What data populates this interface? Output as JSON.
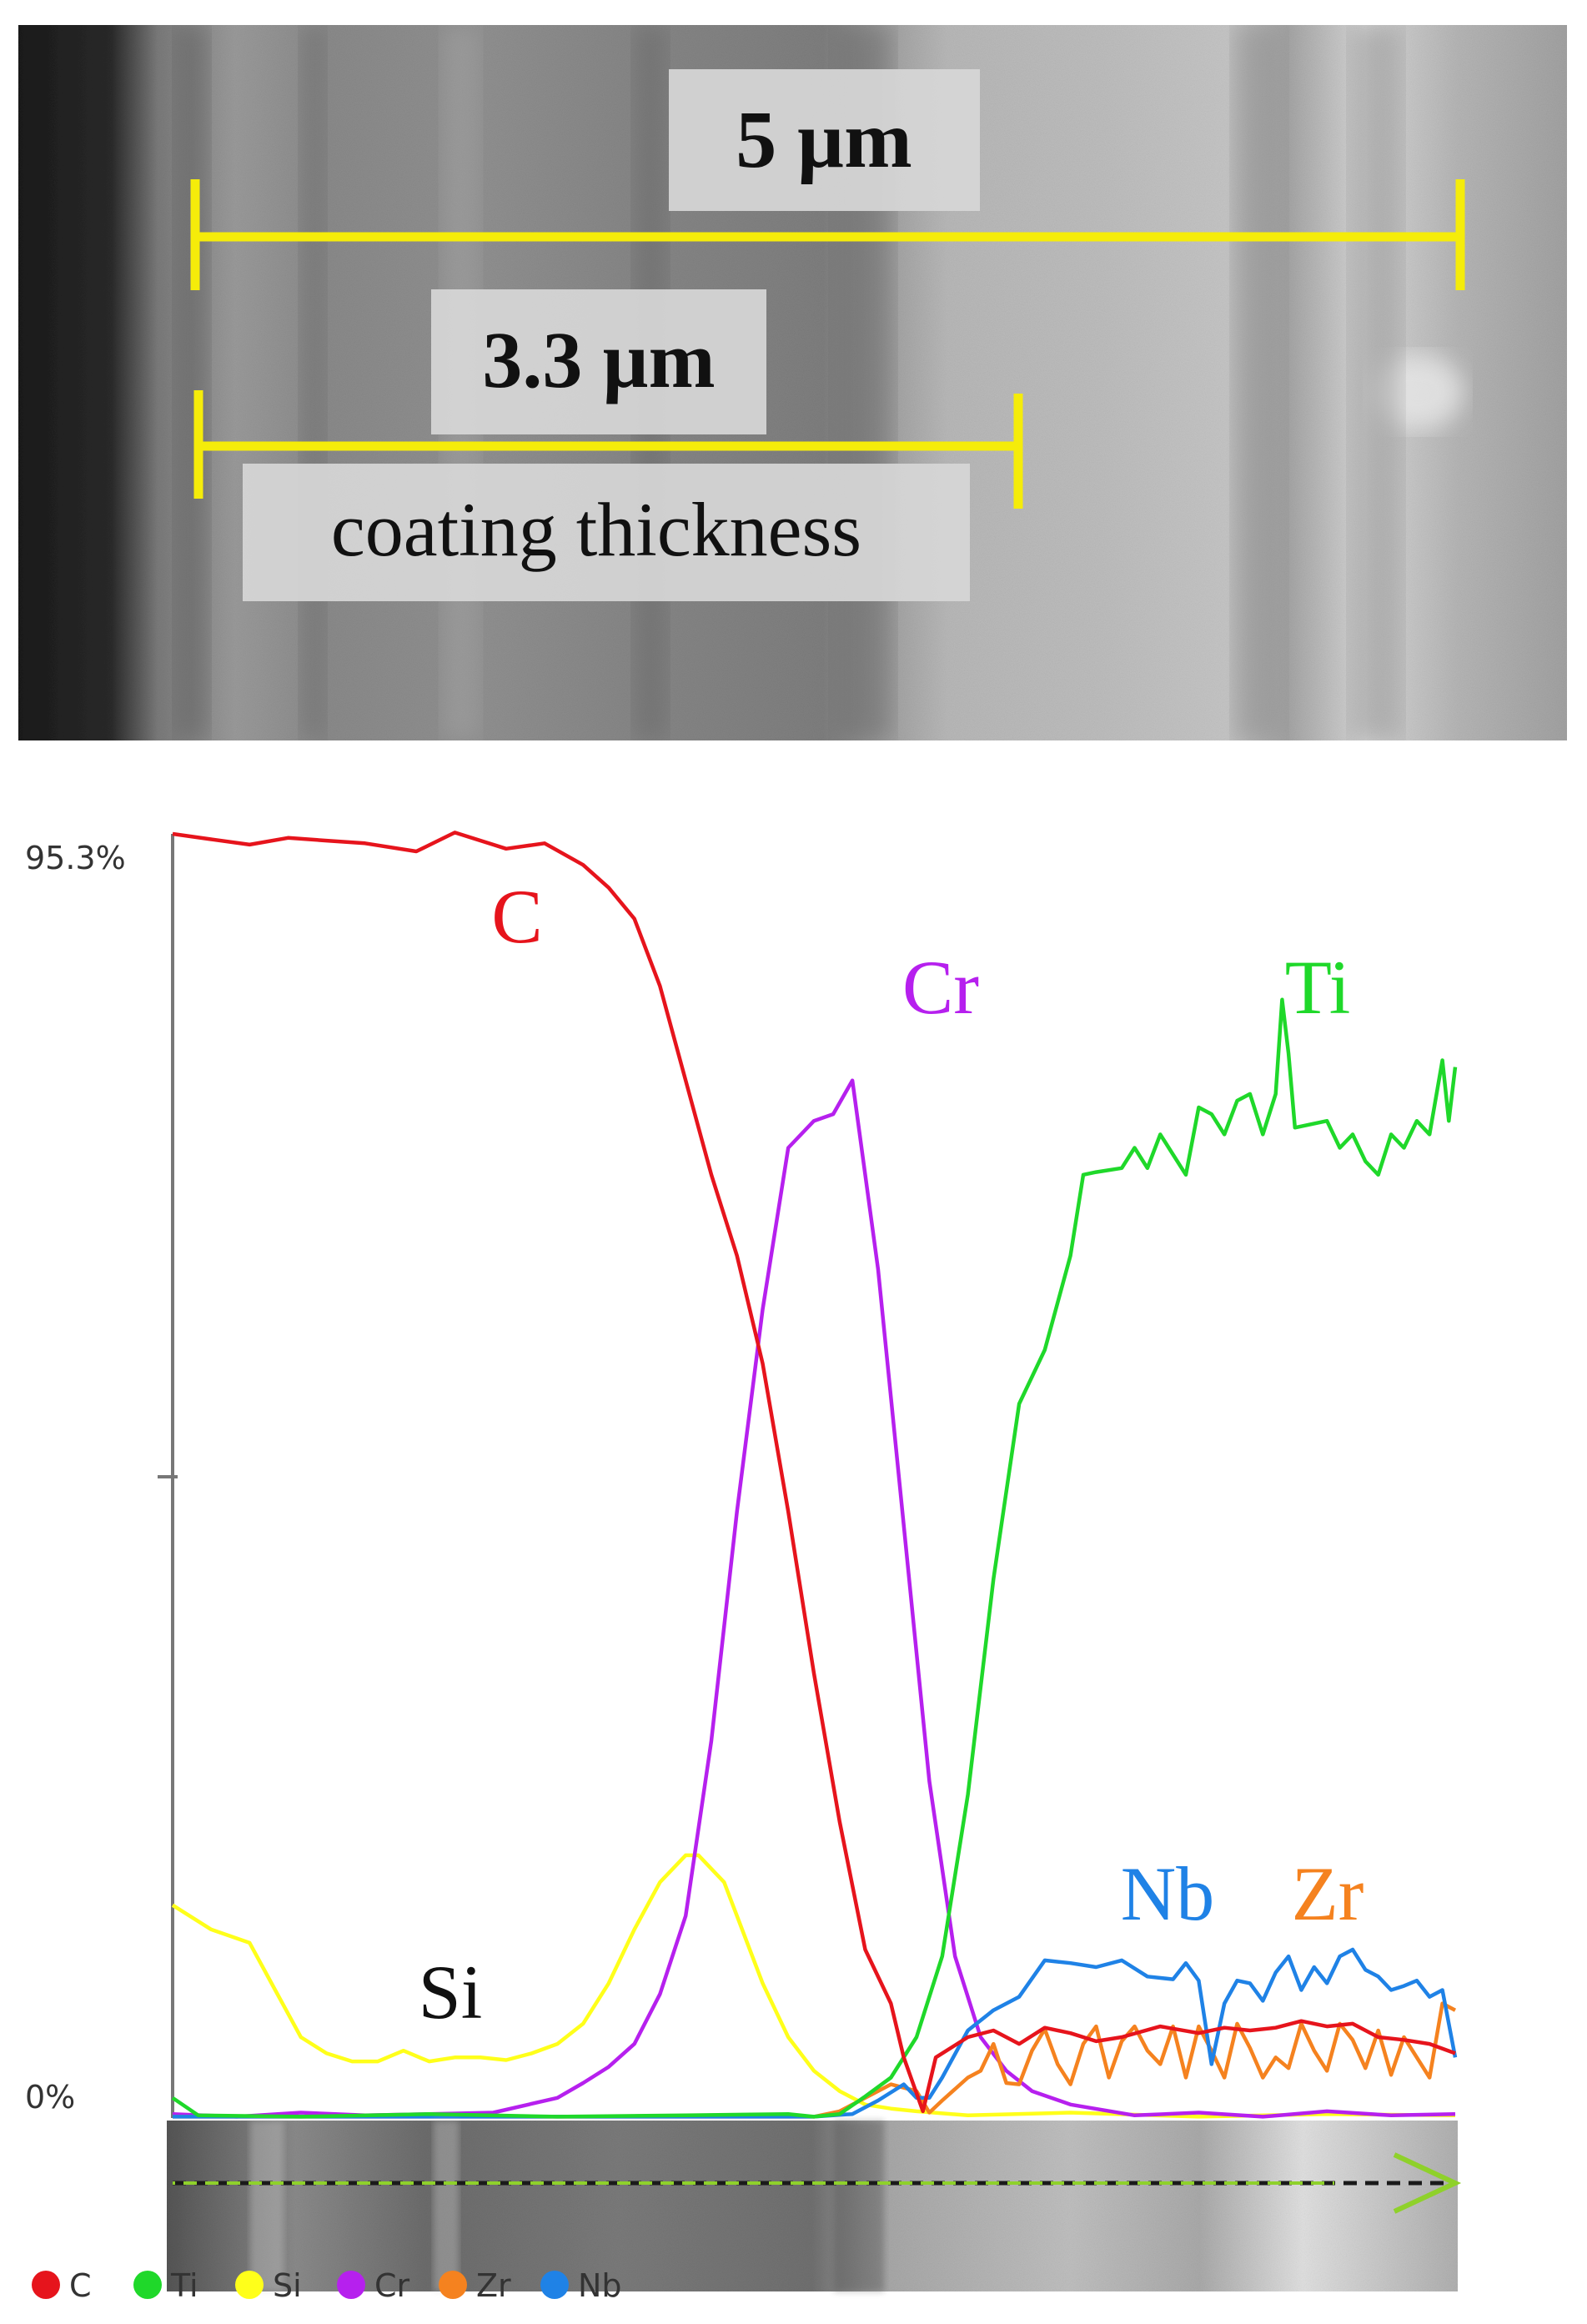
{
  "sem_image": {
    "scale_labels": [
      {
        "text": "5 µm"
      },
      {
        "text": "3.3 µm"
      },
      {
        "text": "coating thickness"
      }
    ],
    "colors": {
      "scale_bar": "#f5ec0a",
      "label_box": "#d4d4d4"
    }
  },
  "chart_data": {
    "type": "line",
    "y_axis": {
      "top_label": "95.3%",
      "bottom_label": "0%",
      "ylim": [
        0,
        95.3
      ],
      "grid": false
    },
    "xlim": [
      0,
      100
    ],
    "series": [
      {
        "name": "C",
        "color": "#e6141c",
        "points": [
          [
            0,
            95.3
          ],
          [
            3,
            94.9
          ],
          [
            6,
            94.5
          ],
          [
            9,
            95.0
          ],
          [
            12,
            94.8
          ],
          [
            15,
            94.6
          ],
          [
            19,
            94.0
          ],
          [
            22,
            95.4
          ],
          [
            26,
            94.2
          ],
          [
            29,
            94.6
          ],
          [
            32,
            93.0
          ],
          [
            34,
            91.3
          ],
          [
            36,
            89.0
          ],
          [
            38,
            84.0
          ],
          [
            40,
            77.0
          ],
          [
            42,
            70.0
          ],
          [
            44,
            64.0
          ],
          [
            46,
            56.0
          ],
          [
            48,
            45.0
          ],
          [
            50,
            33.0
          ],
          [
            52,
            22.0
          ],
          [
            54,
            12.5
          ],
          [
            56,
            8.5
          ],
          [
            57,
            4.5
          ],
          [
            58.5,
            0.5
          ],
          [
            59.5,
            4.5
          ],
          [
            62,
            6.0
          ],
          [
            64,
            6.5
          ],
          [
            66,
            5.5
          ],
          [
            68,
            6.7
          ],
          [
            70,
            6.3
          ],
          [
            72,
            5.7
          ],
          [
            74,
            6.0
          ],
          [
            77,
            6.8
          ],
          [
            80,
            6.3
          ],
          [
            82,
            6.7
          ],
          [
            84,
            6.5
          ],
          [
            86,
            6.7
          ],
          [
            88,
            7.2
          ],
          [
            90,
            6.8
          ],
          [
            92,
            7.0
          ],
          [
            94,
            6.0
          ],
          [
            96,
            5.8
          ],
          [
            98,
            5.5
          ],
          [
            100,
            4.8
          ]
        ]
      },
      {
        "name": "Ti",
        "color": "#1fd82a",
        "points": [
          [
            0,
            1.5
          ],
          [
            2,
            0.2
          ],
          [
            10,
            0.1
          ],
          [
            20,
            0.3
          ],
          [
            30,
            0.1
          ],
          [
            40,
            0.2
          ],
          [
            48,
            0.3
          ],
          [
            50,
            0.1
          ],
          [
            52,
            0.3
          ],
          [
            54,
            1.6
          ],
          [
            56,
            3.0
          ],
          [
            58,
            6.0
          ],
          [
            60,
            12.0
          ],
          [
            62,
            24.0
          ],
          [
            64,
            40.0
          ],
          [
            66,
            53.0
          ],
          [
            68,
            57.0
          ],
          [
            70,
            64.0
          ],
          [
            71,
            70.0
          ],
          [
            72,
            70.2
          ],
          [
            74,
            70.5
          ],
          [
            75,
            72.0
          ],
          [
            76,
            70.5
          ],
          [
            77,
            73.0
          ],
          [
            79,
            70.0
          ],
          [
            80,
            75.0
          ],
          [
            81,
            74.5
          ],
          [
            82,
            73.0
          ],
          [
            83,
            75.5
          ],
          [
            84,
            76.0
          ],
          [
            85,
            73.0
          ],
          [
            86,
            76.0
          ],
          [
            86.5,
            83.0
          ],
          [
            87,
            79.0
          ],
          [
            87.5,
            73.5
          ],
          [
            90,
            74.0
          ],
          [
            91,
            72.0
          ],
          [
            92,
            73.0
          ],
          [
            93,
            71.0
          ],
          [
            94,
            70.0
          ],
          [
            95,
            73.0
          ],
          [
            96,
            72.0
          ],
          [
            97,
            74.0
          ],
          [
            98,
            73.0
          ],
          [
            99,
            78.5
          ],
          [
            99.5,
            74.0
          ],
          [
            100,
            78.0
          ]
        ]
      },
      {
        "name": "Si",
        "color": "#ffff1a",
        "points": [
          [
            0,
            15.8
          ],
          [
            3,
            14.0
          ],
          [
            6,
            13.0
          ],
          [
            8,
            9.5
          ],
          [
            10,
            6.0
          ],
          [
            12,
            4.8
          ],
          [
            14,
            4.2
          ],
          [
            16,
            4.2
          ],
          [
            18,
            5.0
          ],
          [
            20,
            4.2
          ],
          [
            22,
            4.5
          ],
          [
            24,
            4.5
          ],
          [
            26,
            4.3
          ],
          [
            28,
            4.8
          ],
          [
            30,
            5.5
          ],
          [
            32,
            7.0
          ],
          [
            34,
            10.0
          ],
          [
            36,
            14.0
          ],
          [
            38,
            17.5
          ],
          [
            40,
            19.5
          ],
          [
            41,
            19.5
          ],
          [
            43,
            17.5
          ],
          [
            44,
            15.0
          ],
          [
            46,
            10.0
          ],
          [
            48,
            6.0
          ],
          [
            50,
            3.5
          ],
          [
            52,
            2.0
          ],
          [
            54,
            1.0
          ],
          [
            56,
            0.7
          ],
          [
            58,
            0.5
          ],
          [
            62,
            0.2
          ],
          [
            70,
            0.4
          ],
          [
            80,
            0.1
          ],
          [
            90,
            0.3
          ],
          [
            100,
            0.2
          ]
        ]
      },
      {
        "name": "Cr",
        "color": "#b620ee",
        "points": [
          [
            0,
            0.3
          ],
          [
            5,
            0.1
          ],
          [
            10,
            0.4
          ],
          [
            15,
            0.2
          ],
          [
            20,
            0.3
          ],
          [
            25,
            0.4
          ],
          [
            30,
            1.5
          ],
          [
            32,
            2.6
          ],
          [
            34,
            3.8
          ],
          [
            36,
            5.5
          ],
          [
            38,
            9.2
          ],
          [
            40,
            15.0
          ],
          [
            42,
            28.0
          ],
          [
            44,
            45.0
          ],
          [
            46,
            60.0
          ],
          [
            48,
            72.0
          ],
          [
            50,
            74.0
          ],
          [
            51.5,
            74.5
          ],
          [
            53,
            77.0
          ],
          [
            55,
            63.0
          ],
          [
            57,
            44.0
          ],
          [
            59,
            25.0
          ],
          [
            61,
            12.0
          ],
          [
            63,
            6.0
          ],
          [
            65,
            3.5
          ],
          [
            67,
            2.0
          ],
          [
            70,
            1.0
          ],
          [
            75,
            0.2
          ],
          [
            80,
            0.4
          ],
          [
            85,
            0.1
          ],
          [
            90,
            0.5
          ],
          [
            95,
            0.2
          ],
          [
            100,
            0.3
          ]
        ]
      },
      {
        "name": "Zr",
        "color": "#f5821f",
        "points": [
          [
            0,
            0.1
          ],
          [
            50,
            0.1
          ],
          [
            52,
            0.5
          ],
          [
            54,
            1.5
          ],
          [
            56,
            2.5
          ],
          [
            58,
            2.0
          ],
          [
            59,
            0.4
          ],
          [
            60,
            1.3
          ],
          [
            62,
            3.0
          ],
          [
            63,
            3.5
          ],
          [
            64,
            5.5
          ],
          [
            65,
            2.6
          ],
          [
            66,
            2.5
          ],
          [
            67,
            5.0
          ],
          [
            68,
            6.6
          ],
          [
            69,
            4.0
          ],
          [
            70,
            2.5
          ],
          [
            71,
            5.5
          ],
          [
            72,
            6.8
          ],
          [
            73,
            3.0
          ],
          [
            74,
            5.7
          ],
          [
            75,
            6.8
          ],
          [
            76,
            5.0
          ],
          [
            77,
            4.0
          ],
          [
            78,
            6.8
          ],
          [
            79,
            3.0
          ],
          [
            80,
            6.8
          ],
          [
            81,
            5.0
          ],
          [
            82,
            3.0
          ],
          [
            83,
            7.0
          ],
          [
            84,
            5.2
          ],
          [
            85,
            3.0
          ],
          [
            86,
            4.5
          ],
          [
            87,
            3.7
          ],
          [
            88,
            7.0
          ],
          [
            89,
            5.0
          ],
          [
            90,
            3.5
          ],
          [
            91,
            7.0
          ],
          [
            92,
            5.8
          ],
          [
            93,
            3.7
          ],
          [
            94,
            6.5
          ],
          [
            95,
            3.2
          ],
          [
            96,
            6.0
          ],
          [
            97,
            4.5
          ],
          [
            98,
            3.0
          ],
          [
            99,
            8.5
          ],
          [
            100,
            8.0
          ]
        ]
      },
      {
        "name": "Nb",
        "color": "#1f82e6",
        "points": [
          [
            0,
            0.1
          ],
          [
            50,
            0.1
          ],
          [
            53,
            0.3
          ],
          [
            55,
            1.3
          ],
          [
            57,
            2.5
          ],
          [
            58,
            1.5
          ],
          [
            59,
            1.5
          ],
          [
            60,
            3.0
          ],
          [
            62,
            6.5
          ],
          [
            64,
            8.0
          ],
          [
            66,
            9.0
          ],
          [
            68,
            11.7
          ],
          [
            70,
            11.5
          ],
          [
            72,
            11.2
          ],
          [
            74,
            11.7
          ],
          [
            76,
            10.5
          ],
          [
            78,
            10.3
          ],
          [
            79,
            11.5
          ],
          [
            80,
            10.2
          ],
          [
            81,
            4.0
          ],
          [
            82,
            8.5
          ],
          [
            83,
            10.2
          ],
          [
            84,
            10.0
          ],
          [
            85,
            8.7
          ],
          [
            86,
            10.8
          ],
          [
            87,
            12.0
          ],
          [
            88,
            9.5
          ],
          [
            89,
            11.2
          ],
          [
            90,
            10.0
          ],
          [
            91,
            12.0
          ],
          [
            92,
            12.5
          ],
          [
            93,
            11.0
          ],
          [
            94,
            10.5
          ],
          [
            95,
            9.5
          ],
          [
            96,
            9.8
          ],
          [
            97,
            10.2
          ],
          [
            98,
            9.0
          ],
          [
            99,
            9.5
          ],
          [
            100,
            4.5
          ]
        ]
      }
    ],
    "annotations": [
      {
        "text": "C",
        "series": "C"
      },
      {
        "text": "Cr",
        "series": "Cr"
      },
      {
        "text": "Ti",
        "series": "Ti"
      },
      {
        "text": "Si",
        "series": "Si"
      },
      {
        "text": "Nb",
        "series": "Nb"
      },
      {
        "text": "Zr",
        "series": "Zr"
      }
    ],
    "legend": {
      "placement": "bottom-left",
      "entries": [
        "C",
        "Ti",
        "Si",
        "Cr",
        "Zr",
        "Nb"
      ]
    }
  }
}
